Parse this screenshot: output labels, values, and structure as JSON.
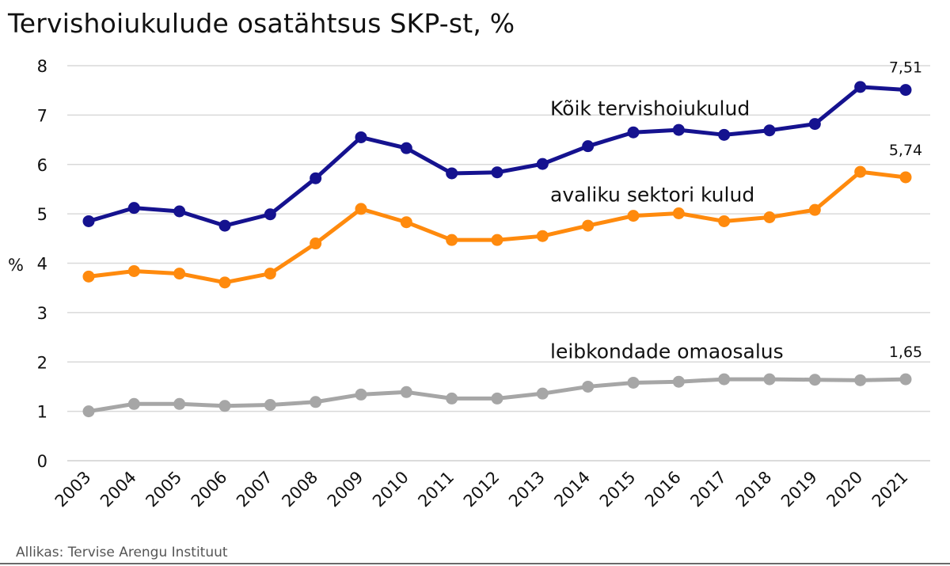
{
  "title": "Tervishoiukulude osatähtsus SKP-st, %",
  "source": "Allikas: Tervise Arengu Instituut",
  "chart_data": {
    "type": "line",
    "ylabel": "%",
    "xlabel": "",
    "ylim": [
      0,
      8
    ],
    "yticks": [
      0,
      1,
      2,
      3,
      4,
      5,
      6,
      7,
      8
    ],
    "grid": true,
    "categories": [
      "2003",
      "2004",
      "2005",
      "2006",
      "2007",
      "2008",
      "2009",
      "2010",
      "2011",
      "2012",
      "2013",
      "2014",
      "2015",
      "2016",
      "2017",
      "2018",
      "2019",
      "2020",
      "2021"
    ],
    "series": [
      {
        "name": "Kõik tervishoiukulud",
        "color": "#15128f",
        "values": [
          4.85,
          5.12,
          5.05,
          4.76,
          4.99,
          5.72,
          6.55,
          6.33,
          5.82,
          5.84,
          6.01,
          6.37,
          6.65,
          6.7,
          6.6,
          6.69,
          6.82,
          7.57,
          7.51
        ],
        "end_label": "7,51"
      },
      {
        "name": "avaliku sektori kulud",
        "color": "#ff8a0d",
        "values": [
          3.73,
          3.84,
          3.79,
          3.61,
          3.79,
          4.4,
          5.1,
          4.83,
          4.47,
          4.47,
          4.55,
          4.76,
          4.96,
          5.01,
          4.85,
          4.93,
          5.08,
          5.85,
          5.74
        ],
        "end_label": "5,74"
      },
      {
        "name": "leibkondade omaosalus",
        "color": "#a6a6a6",
        "values": [
          1.0,
          1.15,
          1.15,
          1.11,
          1.13,
          1.19,
          1.34,
          1.39,
          1.26,
          1.26,
          1.36,
          1.5,
          1.58,
          1.6,
          1.65,
          1.65,
          1.64,
          1.63,
          1.65
        ],
        "end_label": "1,65"
      }
    ]
  }
}
